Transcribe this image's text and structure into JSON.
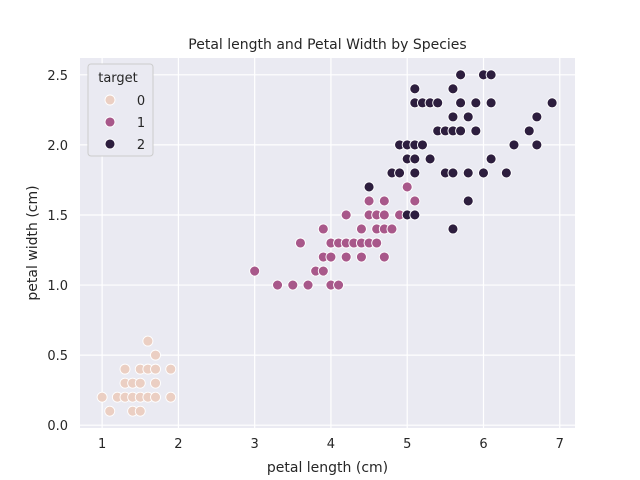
{
  "chart_data": {
    "type": "scatter",
    "title": "Petal length and Petal Width by Species",
    "xlabel": "petal length (cm)",
    "ylabel": "petal width (cm)",
    "xlim": [
      0.71,
      7.2
    ],
    "ylim": [
      -0.02,
      2.62
    ],
    "xticks": [
      1,
      2,
      3,
      4,
      5,
      6,
      7
    ],
    "xtick_labels": [
      "1",
      "2",
      "3",
      "4",
      "5",
      "6",
      "7"
    ],
    "yticks": [
      0.0,
      0.5,
      1.0,
      1.5,
      2.0,
      2.5
    ],
    "ytick_labels": [
      "0.0",
      "0.5",
      "1.0",
      "1.5",
      "2.0",
      "2.5"
    ],
    "grid": true,
    "legend": {
      "title": "target",
      "placement": "top-left",
      "entries": [
        {
          "label": "0",
          "color": "#ebcfc3"
        },
        {
          "label": "1",
          "color": "#a8588a"
        },
        {
          "label": "2",
          "color": "#2d1e3e"
        }
      ]
    },
    "colors": {
      "background": "#eaeaf2",
      "grid": "#ffffff",
      "marker_edge": "#ffffff"
    },
    "series": [
      {
        "name": "0",
        "color": "#ebcfc3",
        "points": [
          [
            1.0,
            0.2
          ],
          [
            1.1,
            0.1
          ],
          [
            1.2,
            0.2
          ],
          [
            1.3,
            0.2
          ],
          [
            1.3,
            0.3
          ],
          [
            1.3,
            0.4
          ],
          [
            1.4,
            0.1
          ],
          [
            1.4,
            0.2
          ],
          [
            1.4,
            0.3
          ],
          [
            1.5,
            0.1
          ],
          [
            1.5,
            0.2
          ],
          [
            1.5,
            0.3
          ],
          [
            1.5,
            0.4
          ],
          [
            1.6,
            0.2
          ],
          [
            1.6,
            0.4
          ],
          [
            1.6,
            0.6
          ],
          [
            1.7,
            0.2
          ],
          [
            1.7,
            0.3
          ],
          [
            1.7,
            0.4
          ],
          [
            1.7,
            0.5
          ],
          [
            1.9,
            0.2
          ],
          [
            1.9,
            0.4
          ]
        ]
      },
      {
        "name": "1",
        "color": "#a8588a",
        "points": [
          [
            3.0,
            1.1
          ],
          [
            3.3,
            1.0
          ],
          [
            3.5,
            1.0
          ],
          [
            3.6,
            1.3
          ],
          [
            3.7,
            1.0
          ],
          [
            3.8,
            1.1
          ],
          [
            3.9,
            1.1
          ],
          [
            3.9,
            1.2
          ],
          [
            3.9,
            1.4
          ],
          [
            4.0,
            1.0
          ],
          [
            4.0,
            1.2
          ],
          [
            4.0,
            1.3
          ],
          [
            4.1,
            1.0
          ],
          [
            4.1,
            1.3
          ],
          [
            4.2,
            1.2
          ],
          [
            4.2,
            1.3
          ],
          [
            4.2,
            1.5
          ],
          [
            4.3,
            1.3
          ],
          [
            4.4,
            1.2
          ],
          [
            4.4,
            1.3
          ],
          [
            4.4,
            1.4
          ],
          [
            4.5,
            1.3
          ],
          [
            4.5,
            1.5
          ],
          [
            4.5,
            1.6
          ],
          [
            4.6,
            1.3
          ],
          [
            4.6,
            1.4
          ],
          [
            4.6,
            1.5
          ],
          [
            4.7,
            1.2
          ],
          [
            4.7,
            1.4
          ],
          [
            4.7,
            1.5
          ],
          [
            4.7,
            1.6
          ],
          [
            4.8,
            1.4
          ],
          [
            4.9,
            1.5
          ],
          [
            5.0,
            1.7
          ],
          [
            5.1,
            1.6
          ]
        ]
      },
      {
        "name": "2",
        "color": "#2d1e3e",
        "points": [
          [
            4.5,
            1.7
          ],
          [
            4.8,
            1.8
          ],
          [
            4.9,
            1.8
          ],
          [
            4.9,
            2.0
          ],
          [
            5.0,
            1.5
          ],
          [
            5.0,
            1.9
          ],
          [
            5.0,
            2.0
          ],
          [
            5.1,
            1.5
          ],
          [
            5.1,
            1.8
          ],
          [
            5.1,
            1.9
          ],
          [
            5.1,
            2.0
          ],
          [
            5.1,
            2.3
          ],
          [
            5.1,
            2.4
          ],
          [
            5.2,
            2.0
          ],
          [
            5.2,
            2.3
          ],
          [
            5.3,
            1.9
          ],
          [
            5.3,
            2.3
          ],
          [
            5.4,
            2.1
          ],
          [
            5.4,
            2.3
          ],
          [
            5.5,
            1.8
          ],
          [
            5.5,
            2.1
          ],
          [
            5.6,
            1.4
          ],
          [
            5.6,
            1.8
          ],
          [
            5.6,
            2.1
          ],
          [
            5.6,
            2.2
          ],
          [
            5.6,
            2.4
          ],
          [
            5.7,
            2.1
          ],
          [
            5.7,
            2.3
          ],
          [
            5.7,
            2.5
          ],
          [
            5.8,
            1.6
          ],
          [
            5.8,
            1.8
          ],
          [
            5.8,
            2.2
          ],
          [
            5.9,
            2.1
          ],
          [
            5.9,
            2.3
          ],
          [
            6.0,
            1.8
          ],
          [
            6.0,
            2.5
          ],
          [
            6.1,
            1.9
          ],
          [
            6.1,
            2.3
          ],
          [
            6.1,
            2.5
          ],
          [
            6.3,
            1.8
          ],
          [
            6.4,
            2.0
          ],
          [
            6.6,
            2.1
          ],
          [
            6.7,
            2.0
          ],
          [
            6.7,
            2.2
          ],
          [
            6.9,
            2.3
          ]
        ]
      }
    ]
  }
}
